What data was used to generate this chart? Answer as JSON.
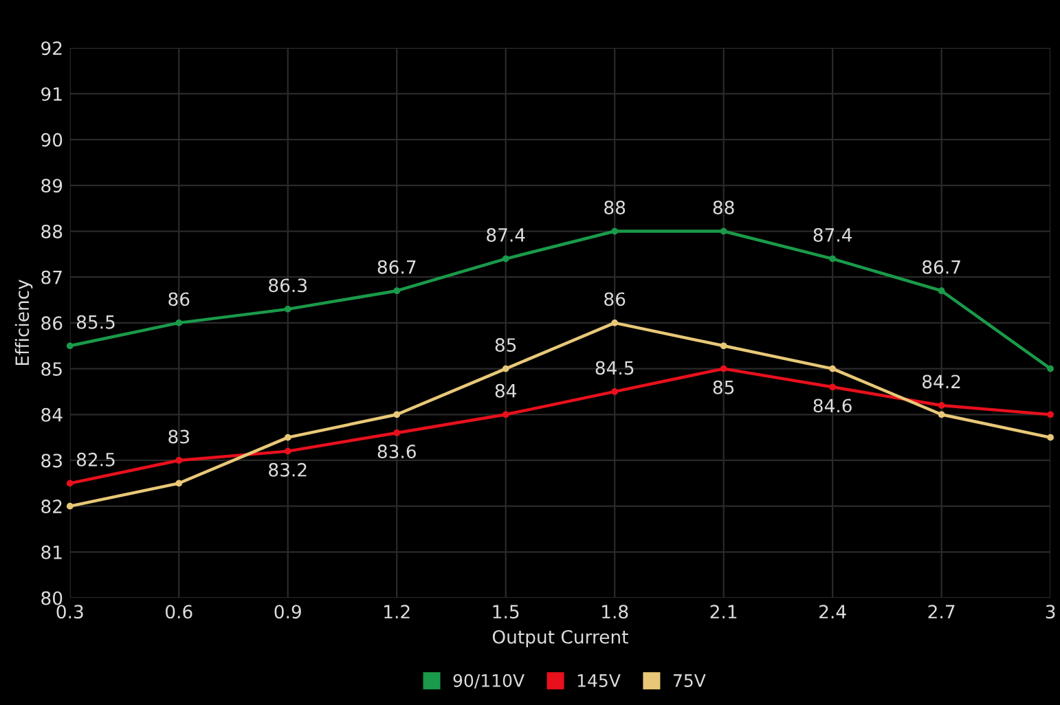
{
  "chart_data": {
    "type": "line",
    "xlabel": "Output Current",
    "ylabel": "Efficiency",
    "x": [
      0.3,
      0.6,
      0.9,
      1.2,
      1.5,
      1.8,
      2.1,
      2.4,
      2.7,
      3
    ],
    "xlim": [
      0.3,
      3
    ],
    "xticks": [
      0.3,
      0.6,
      0.9,
      1.2,
      1.5,
      1.8,
      2.1,
      2.4,
      2.7,
      3
    ],
    "ylim": [
      80,
      92
    ],
    "yticks": [
      80,
      81,
      82,
      83,
      84,
      85,
      86,
      87,
      88,
      89,
      90,
      91,
      92
    ],
    "grid": true,
    "legend": "bottom",
    "marker": "circle",
    "line_style": "solid",
    "series": [
      {
        "name": "90/110V",
        "color": "#1a9a4a",
        "values": [
          85.5,
          86,
          86.3,
          86.7,
          87.4,
          88,
          88,
          87.4,
          86.7,
          85
        ],
        "value_labels": [
          "85.5",
          "86",
          "86.3",
          "86.7",
          "87.4",
          "88",
          "88",
          "87.4",
          "86.7",
          null
        ]
      },
      {
        "name": "145V",
        "color": "#e8101c",
        "values": [
          82.5,
          83,
          83.2,
          83.6,
          84,
          84.5,
          85,
          84.6,
          84.2,
          84
        ],
        "value_labels": [
          "82.5",
          "83",
          "83.2",
          "83.6",
          "84",
          "84.5",
          "85",
          "84.6",
          "84.2",
          null
        ]
      },
      {
        "name": "75V",
        "color": "#e8c878",
        "values": [
          82,
          82.5,
          83.5,
          84,
          85,
          86,
          85.5,
          85,
          84,
          83.5
        ],
        "value_labels": [
          null,
          null,
          null,
          null,
          "85",
          "86",
          null,
          null,
          null,
          null
        ]
      }
    ]
  }
}
